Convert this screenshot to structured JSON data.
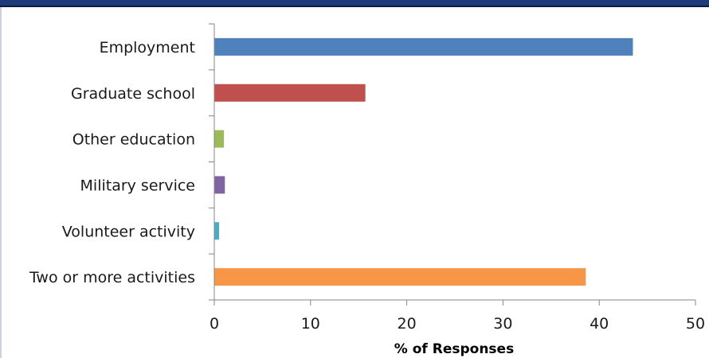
{
  "chart_data": {
    "type": "bar",
    "orientation": "horizontal",
    "title": "",
    "xlabel": "% of Responses",
    "ylabel": "",
    "xlim": [
      0,
      50
    ],
    "xticks": [
      0,
      10,
      20,
      30,
      40,
      50
    ],
    "grid": false,
    "categories": [
      "Employment",
      "Graduate school",
      "Other education",
      "Military service",
      "Volunteer activity",
      "Two or more activities"
    ],
    "values": [
      43.5,
      15.7,
      1.0,
      1.1,
      0.5,
      38.6
    ],
    "colors": [
      "#4f81bd",
      "#c0504d",
      "#9bbb59",
      "#8064a2",
      "#4bacc6",
      "#f79646"
    ]
  }
}
